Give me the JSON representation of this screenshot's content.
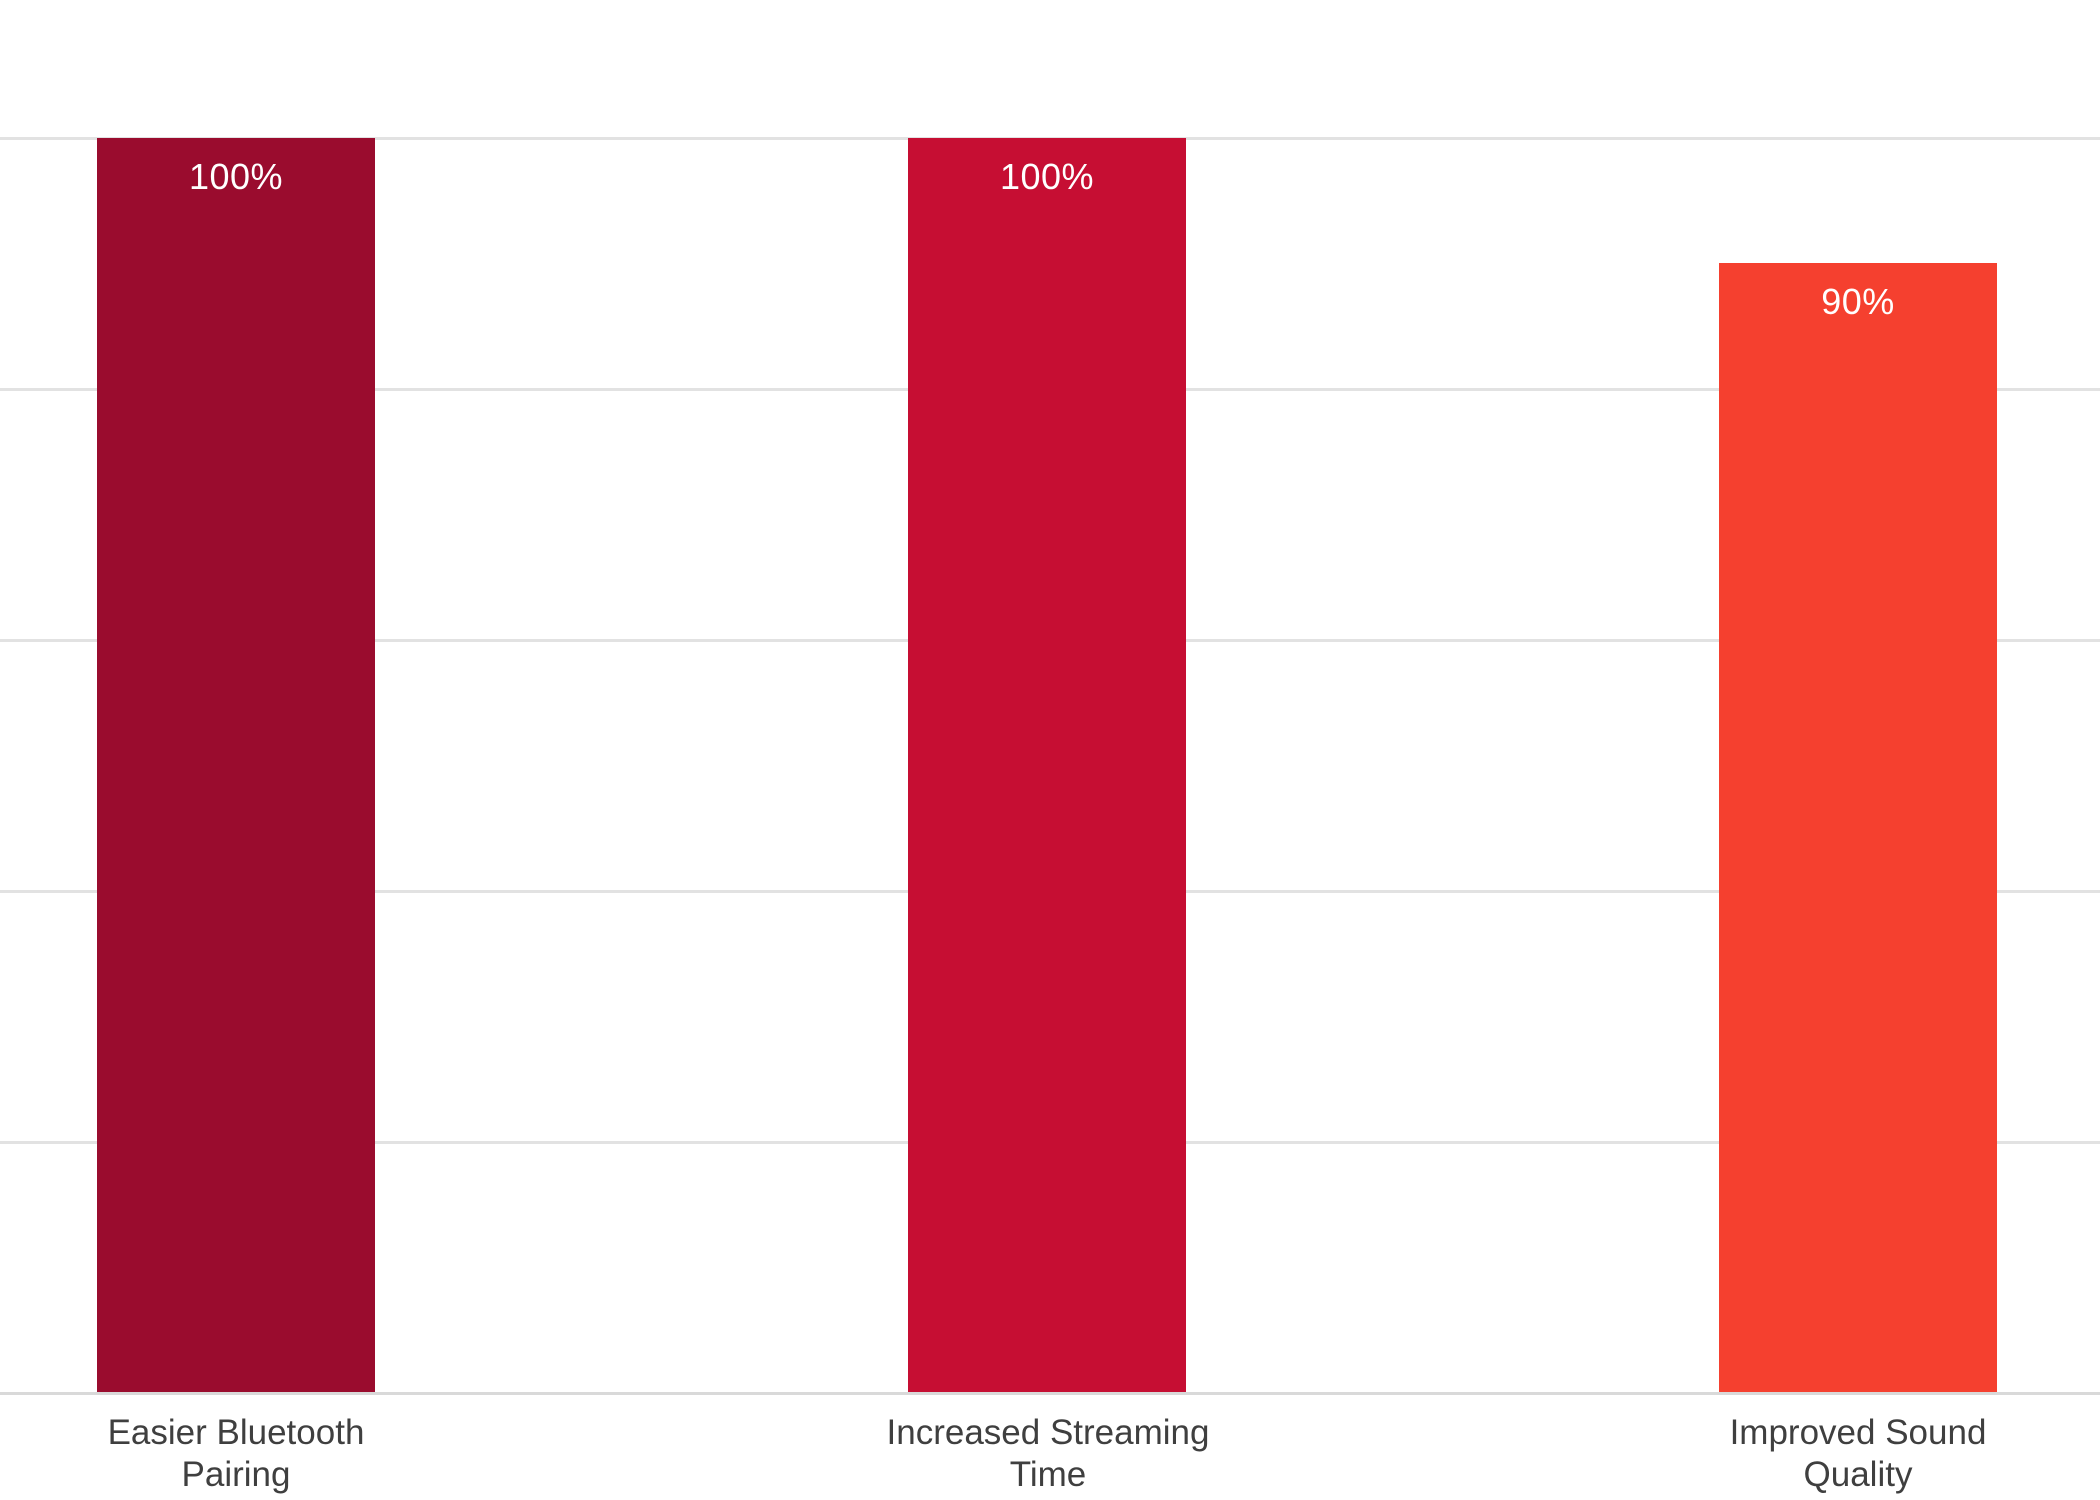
{
  "chart_data": {
    "type": "bar",
    "title": "",
    "xlabel": "",
    "ylabel": "",
    "unit": "%",
    "categories": [
      "Easier Bluetooth Pairing",
      "Increased Streaming Time",
      "Improved Sound Quality"
    ],
    "values": [
      100,
      100,
      90
    ],
    "value_labels": [
      "100%",
      "100%",
      "90%"
    ],
    "ylim": [
      0,
      100
    ],
    "gridlines_pct": [
      20,
      40,
      60,
      80,
      100
    ],
    "grid": "horizontal",
    "legend": "none",
    "axis_tick_labels_visible": false,
    "value_label_position": "inside-end",
    "bars": [
      {
        "category": "Easier Bluetooth Pairing",
        "category_lines": [
          "Easier Bluetooth",
          "Pairing"
        ],
        "value": 100,
        "value_label": "100%",
        "color": "#9a0c2e"
      },
      {
        "category": "Increased Streaming Time",
        "category_lines": [
          "Increased Streaming",
          "Time"
        ],
        "value": 100,
        "value_label": "100%",
        "color": "#c60e33"
      },
      {
        "category": "Improved Sound Quality",
        "category_lines": [
          "Improved Sound",
          "Quality"
        ],
        "value": 90,
        "value_label": "90%",
        "color": "#f5402f"
      }
    ],
    "colors": {
      "background": "#ffffff",
      "gridline": "#e2e2e2",
      "axis_line": "#d9d9d9",
      "value_label_text": "#ffffff",
      "category_label_text": "#3f3f3f"
    }
  }
}
